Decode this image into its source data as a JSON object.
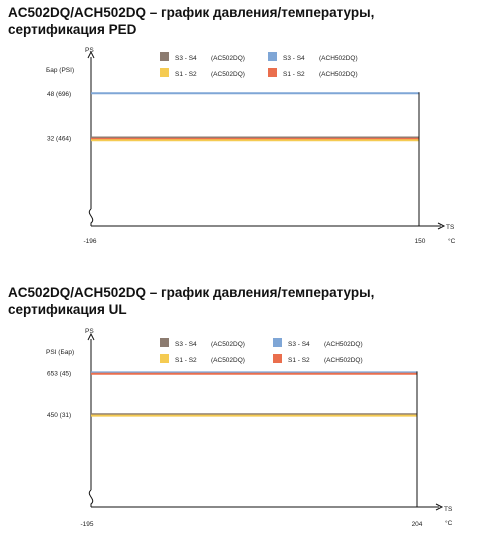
{
  "chart_data": [
    {
      "type": "line",
      "title_line1": "AC502DQ/ACH502DQ – график давления/температуры,",
      "title_line2": "сертификация PED",
      "ylabel": "PS",
      "yunits": "Бар (PSI)",
      "xlabel": "TS",
      "xunits": "°C",
      "x_tick_labels": [
        "-196",
        "150"
      ],
      "y_tick_labels": [
        "48  (696)",
        "32  (464)"
      ],
      "ylim": [
        0,
        60
      ],
      "x": [
        -196,
        150
      ],
      "legend": [
        {
          "name": "S3 - S4",
          "model": "(AC502DQ)",
          "color": "#8c7b70"
        },
        {
          "name": "S3 - S4",
          "model": "(ACH502DQ)",
          "color": "#7fa6d6"
        },
        {
          "name": "S1 - S2",
          "model": "(AC502DQ)",
          "color": "#f5cb52"
        },
        {
          "name": "S1 - S2",
          "model": "(ACH502DQ)",
          "color": "#ea6e4d"
        }
      ],
      "series": [
        {
          "y": 48,
          "color": "#7fa6d6"
        },
        {
          "y": 32,
          "color": "#8c7b70"
        },
        {
          "y": 32,
          "color": "#ea6e4d"
        },
        {
          "y": 32,
          "color": "#f5cb52"
        }
      ]
    },
    {
      "type": "line",
      "title_line1": "AC502DQ/ACH502DQ – график давления/температуры,",
      "title_line2": "сертификация UL",
      "ylabel": "PS",
      "yunits": "PSI (Бар)",
      "xlabel": "TS",
      "xunits": "°C",
      "x_tick_labels": [
        "-195",
        "204"
      ],
      "y_tick_labels": [
        "653  (45)",
        "450  (31)"
      ],
      "ylim": [
        0,
        800
      ],
      "x": [
        -195,
        204
      ],
      "legend": [
        {
          "name": "S3 - S4",
          "model": "(AC502DQ)",
          "color": "#8c7b70"
        },
        {
          "name": "S3 - S4",
          "model": "(ACH502DQ)",
          "color": "#7fa6d6"
        },
        {
          "name": "S1 - S2",
          "model": "(AC502DQ)",
          "color": "#f5cb52"
        },
        {
          "name": "S1 - S2",
          "model": "(ACH502DQ)",
          "color": "#ea6e4d"
        }
      ],
      "series": [
        {
          "y": 653,
          "color": "#7fa6d6"
        },
        {
          "y": 653,
          "color": "#ea6e4d"
        },
        {
          "y": 450,
          "color": "#8c7b70"
        },
        {
          "y": 450,
          "color": "#f5cb52"
        }
      ]
    }
  ]
}
